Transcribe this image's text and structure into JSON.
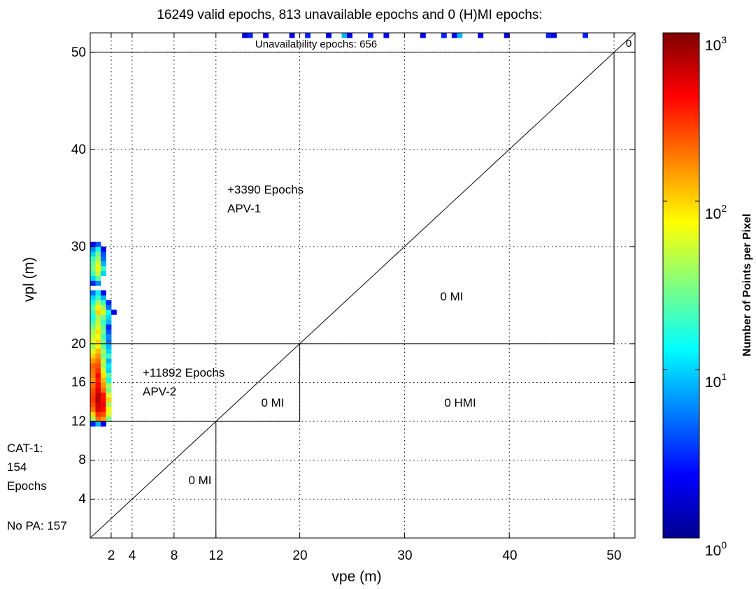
{
  "chart_data": {
    "type": "heatmap",
    "title": "16249 valid epochs, 813 unavailable epochs and 0 (H)MI epochs:",
    "xlabel": "vpe (m)",
    "ylabel": "vpl (m)",
    "xlim": [
      0,
      52
    ],
    "ylim": [
      0,
      52
    ],
    "x_ticks": [
      "2",
      "4",
      "8",
      "12",
      "20",
      "30",
      "40",
      "50"
    ],
    "y_ticks": [
      "4",
      "8",
      "12",
      "16",
      "20",
      "30",
      "40",
      "50"
    ],
    "grid": true,
    "colorbar": {
      "label": "Number of Points per Pixel",
      "scale": "log",
      "min": 1,
      "max": 1000,
      "ticks": [
        {
          "base": "10",
          "exp": "0",
          "value": 1
        },
        {
          "base": "10",
          "exp": "1",
          "value": 10
        },
        {
          "base": "10",
          "exp": "2",
          "value": 100
        },
        {
          "base": "10",
          "exp": "3",
          "value": 1000
        }
      ],
      "colormap": [
        "#00008f",
        "#0000ff",
        "#0080ff",
        "#00ffff",
        "#80ff80",
        "#ffff00",
        "#ff8000",
        "#ff0000",
        "#800000"
      ]
    },
    "region_labels": {
      "unavailability": "Unavailability epochs: 656",
      "corner": "0",
      "apv1_count": "+3390 Epochs",
      "apv1_name": "APV-1",
      "apv2_count": "+11892 Epochs",
      "apv2_name": "APV-2",
      "mi_upper": "0 MI",
      "mi_mid": "0 MI",
      "mi_low": "0 MI",
      "hmi": "0 HMI",
      "cat1_line1": "CAT-1:",
      "cat1_line2": "154",
      "cat1_line3": "Epochs",
      "no_pa": "No PA: 157"
    },
    "cells_note_x": "vpe bins in m",
    "cells": [
      {
        "x": 0,
        "y": 11.5,
        "count": 3
      },
      {
        "x": 0.5,
        "y": 11.5,
        "count": 8
      },
      {
        "x": 1,
        "y": 11.5,
        "count": 2
      },
      {
        "x": 0,
        "y": 12,
        "count": 40
      },
      {
        "x": 0.5,
        "y": 12,
        "count": 200
      },
      {
        "x": 1,
        "y": 12,
        "count": 150
      },
      {
        "x": 1.5,
        "y": 12,
        "count": 30
      },
      {
        "x": 0,
        "y": 12.5,
        "count": 100
      },
      {
        "x": 0.5,
        "y": 12.5,
        "count": 300
      },
      {
        "x": 1,
        "y": 12.5,
        "count": 250
      },
      {
        "x": 1.5,
        "y": 12.5,
        "count": 60
      },
      {
        "x": 0,
        "y": 13,
        "count": 200
      },
      {
        "x": 0.5,
        "y": 13,
        "count": 500
      },
      {
        "x": 1,
        "y": 13,
        "count": 400
      },
      {
        "x": 1.5,
        "y": 13,
        "count": 80
      },
      {
        "x": 0,
        "y": 13.5,
        "count": 250
      },
      {
        "x": 0.5,
        "y": 13.5,
        "count": 600
      },
      {
        "x": 1,
        "y": 13.5,
        "count": 450
      },
      {
        "x": 1.5,
        "y": 13.5,
        "count": 40
      },
      {
        "x": 0,
        "y": 14,
        "count": 300
      },
      {
        "x": 0.5,
        "y": 14,
        "count": 700
      },
      {
        "x": 1,
        "y": 14,
        "count": 400
      },
      {
        "x": 1.5,
        "y": 14,
        "count": 100
      },
      {
        "x": 0,
        "y": 14.5,
        "count": 280
      },
      {
        "x": 0.5,
        "y": 14.5,
        "count": 650
      },
      {
        "x": 1,
        "y": 14.5,
        "count": 380
      },
      {
        "x": 1.5,
        "y": 14.5,
        "count": 60
      },
      {
        "x": 0,
        "y": 15,
        "count": 250
      },
      {
        "x": 0.5,
        "y": 15,
        "count": 500
      },
      {
        "x": 1,
        "y": 15,
        "count": 200
      },
      {
        "x": 1.5,
        "y": 15,
        "count": 30
      },
      {
        "x": 0,
        "y": 15.5,
        "count": 200
      },
      {
        "x": 0.5,
        "y": 15.5,
        "count": 400
      },
      {
        "x": 1,
        "y": 15.5,
        "count": 150
      },
      {
        "x": 1.5,
        "y": 15.5,
        "count": 40
      },
      {
        "x": 0,
        "y": 16,
        "count": 150
      },
      {
        "x": 0.5,
        "y": 16,
        "count": 350
      },
      {
        "x": 1,
        "y": 16,
        "count": 120
      },
      {
        "x": 1.5,
        "y": 16,
        "count": 15
      },
      {
        "x": 0,
        "y": 16.5,
        "count": 180
      },
      {
        "x": 0.5,
        "y": 16.5,
        "count": 400
      },
      {
        "x": 1,
        "y": 16.5,
        "count": 90
      },
      {
        "x": 1.5,
        "y": 16.5,
        "count": 25
      },
      {
        "x": 0,
        "y": 17,
        "count": 200
      },
      {
        "x": 0.5,
        "y": 17,
        "count": 300
      },
      {
        "x": 1,
        "y": 17,
        "count": 60
      },
      {
        "x": 1.5,
        "y": 17,
        "count": 10
      },
      {
        "x": 0,
        "y": 17.5,
        "count": 220
      },
      {
        "x": 0.5,
        "y": 17.5,
        "count": 250
      },
      {
        "x": 1,
        "y": 17.5,
        "count": 40
      },
      {
        "x": 1.5,
        "y": 17.5,
        "count": 12
      },
      {
        "x": 0,
        "y": 18,
        "count": 150
      },
      {
        "x": 0.5,
        "y": 18,
        "count": 200
      },
      {
        "x": 1,
        "y": 18,
        "count": 50
      },
      {
        "x": 1.5,
        "y": 18,
        "count": 8
      },
      {
        "x": 0,
        "y": 18.5,
        "count": 100
      },
      {
        "x": 0.5,
        "y": 18.5,
        "count": 150
      },
      {
        "x": 1,
        "y": 18.5,
        "count": 30
      },
      {
        "x": 1.5,
        "y": 18.5,
        "count": 20
      },
      {
        "x": 0,
        "y": 19,
        "count": 60
      },
      {
        "x": 0.5,
        "y": 19,
        "count": 120
      },
      {
        "x": 1,
        "y": 19,
        "count": 40
      },
      {
        "x": 1.5,
        "y": 19,
        "count": 10
      },
      {
        "x": 0,
        "y": 19.5,
        "count": 40
      },
      {
        "x": 0.5,
        "y": 19.5,
        "count": 80
      },
      {
        "x": 1,
        "y": 19.5,
        "count": 25
      },
      {
        "x": 1.5,
        "y": 19.5,
        "count": 8
      },
      {
        "x": 0,
        "y": 20,
        "count": 60
      },
      {
        "x": 0.5,
        "y": 20,
        "count": 100
      },
      {
        "x": 1,
        "y": 20,
        "count": 30
      },
      {
        "x": 1.5,
        "y": 20,
        "count": 5
      },
      {
        "x": 0,
        "y": 20.5,
        "count": 50
      },
      {
        "x": 0.5,
        "y": 20.5,
        "count": 70
      },
      {
        "x": 1,
        "y": 20.5,
        "count": 20
      },
      {
        "x": 1.5,
        "y": 20.5,
        "count": 6
      },
      {
        "x": 0,
        "y": 21,
        "count": 40
      },
      {
        "x": 0.5,
        "y": 21,
        "count": 90
      },
      {
        "x": 1,
        "y": 21,
        "count": 30
      },
      {
        "x": 1.5,
        "y": 21,
        "count": 4
      },
      {
        "x": 0,
        "y": 21.5,
        "count": 30
      },
      {
        "x": 0.5,
        "y": 21.5,
        "count": 60
      },
      {
        "x": 1,
        "y": 21.5,
        "count": 25
      },
      {
        "x": 1.5,
        "y": 21.5,
        "count": 3
      },
      {
        "x": 0,
        "y": 22,
        "count": 20
      },
      {
        "x": 0.5,
        "y": 22,
        "count": 50
      },
      {
        "x": 1,
        "y": 22,
        "count": 20
      },
      {
        "x": 1.5,
        "y": 22,
        "count": 8
      },
      {
        "x": 0,
        "y": 22.5,
        "count": 15
      },
      {
        "x": 0.5,
        "y": 22.5,
        "count": 40
      },
      {
        "x": 1,
        "y": 22.5,
        "count": 30
      },
      {
        "x": 1.5,
        "y": 22.5,
        "count": 10
      },
      {
        "x": 0,
        "y": 23,
        "count": 20
      },
      {
        "x": 0.5,
        "y": 23,
        "count": 100
      },
      {
        "x": 1,
        "y": 23,
        "count": 60
      },
      {
        "x": 1.5,
        "y": 23,
        "count": 15
      },
      {
        "x": 2,
        "y": 23,
        "count": 2
      },
      {
        "x": 0,
        "y": 23.5,
        "count": 25
      },
      {
        "x": 0.5,
        "y": 23.5,
        "count": 80
      },
      {
        "x": 1,
        "y": 23.5,
        "count": 40
      },
      {
        "x": 1.5,
        "y": 23.5,
        "count": 5
      },
      {
        "x": 0,
        "y": 24,
        "count": 15
      },
      {
        "x": 0.5,
        "y": 24,
        "count": 40
      },
      {
        "x": 1,
        "y": 24,
        "count": 20
      },
      {
        "x": 1.5,
        "y": 24,
        "count": 3
      },
      {
        "x": 0,
        "y": 24.5,
        "count": 10
      },
      {
        "x": 0.5,
        "y": 24.5,
        "count": 20
      },
      {
        "x": 1,
        "y": 24.5,
        "count": 8
      },
      {
        "x": 0,
        "y": 25,
        "count": 5
      },
      {
        "x": 0.5,
        "y": 25,
        "count": 12
      },
      {
        "x": 1,
        "y": 25,
        "count": 2
      },
      {
        "x": 0,
        "y": 26,
        "count": 3
      },
      {
        "x": 0.5,
        "y": 26,
        "count": 6
      },
      {
        "x": 0,
        "y": 26.5,
        "count": 10
      },
      {
        "x": 0.5,
        "y": 26.5,
        "count": 25
      },
      {
        "x": 0,
        "y": 27,
        "count": 20
      },
      {
        "x": 0.5,
        "y": 27,
        "count": 50
      },
      {
        "x": 1,
        "y": 27,
        "count": 10
      },
      {
        "x": 0,
        "y": 27.5,
        "count": 30
      },
      {
        "x": 0.5,
        "y": 27.5,
        "count": 80
      },
      {
        "x": 1,
        "y": 27.5,
        "count": 20
      },
      {
        "x": 0,
        "y": 28,
        "count": 25
      },
      {
        "x": 0.5,
        "y": 28,
        "count": 60
      },
      {
        "x": 1,
        "y": 28,
        "count": 8
      },
      {
        "x": 0,
        "y": 28.5,
        "count": 20
      },
      {
        "x": 0.5,
        "y": 28.5,
        "count": 40
      },
      {
        "x": 1,
        "y": 28.5,
        "count": 5
      },
      {
        "x": 0,
        "y": 29,
        "count": 10
      },
      {
        "x": 0.5,
        "y": 29,
        "count": 30
      },
      {
        "x": 1,
        "y": 29,
        "count": 4
      },
      {
        "x": 0,
        "y": 29.5,
        "count": 6
      },
      {
        "x": 0.5,
        "y": 29.5,
        "count": 15
      },
      {
        "x": 1,
        "y": 29.5,
        "count": 2
      },
      {
        "x": 0,
        "y": 30,
        "count": 2
      },
      {
        "x": 0.5,
        "y": 30,
        "count": 4
      },
      {
        "x": 14.5,
        "y": 51.5,
        "count": 2
      },
      {
        "x": 15,
        "y": 51.5,
        "count": 3
      },
      {
        "x": 16.5,
        "y": 51.5,
        "count": 2
      },
      {
        "x": 19,
        "y": 51.5,
        "count": 2
      },
      {
        "x": 20.5,
        "y": 51.5,
        "count": 3
      },
      {
        "x": 22.5,
        "y": 51.5,
        "count": 2
      },
      {
        "x": 24,
        "y": 51.5,
        "count": 8
      },
      {
        "x": 24.5,
        "y": 51.5,
        "count": 2
      },
      {
        "x": 26.5,
        "y": 51.5,
        "count": 3
      },
      {
        "x": 28,
        "y": 51.5,
        "count": 2
      },
      {
        "x": 31.5,
        "y": 51.5,
        "count": 2
      },
      {
        "x": 33.5,
        "y": 51.5,
        "count": 3
      },
      {
        "x": 34.5,
        "y": 51.5,
        "count": 2
      },
      {
        "x": 35,
        "y": 51.5,
        "count": 8
      },
      {
        "x": 37,
        "y": 51.5,
        "count": 2
      },
      {
        "x": 39.5,
        "y": 51.5,
        "count": 2
      },
      {
        "x": 43.5,
        "y": 51.5,
        "count": 3
      },
      {
        "x": 44,
        "y": 51.5,
        "count": 2
      },
      {
        "x": 47,
        "y": 51.5,
        "count": 3
      }
    ]
  }
}
